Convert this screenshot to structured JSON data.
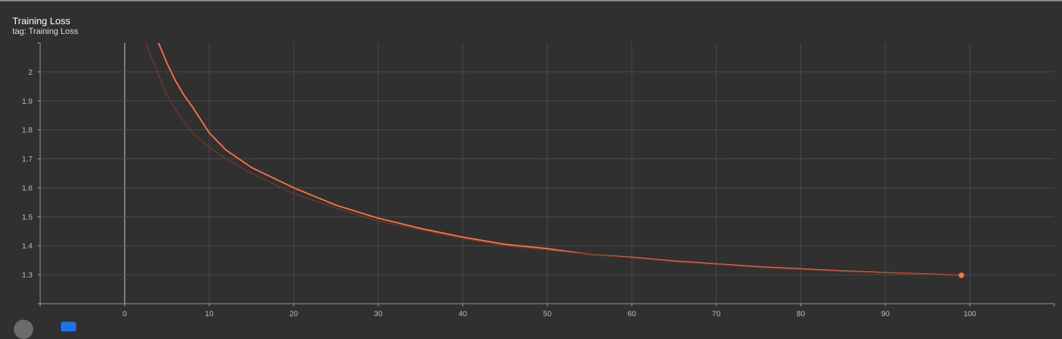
{
  "card": {
    "title": "Training Loss",
    "subtitle": "tag: Training Loss"
  },
  "colors": {
    "background": "#303030",
    "grid": "#4d4d4d",
    "axis": "#9e9e9e",
    "smoothed_line": "#ff7043",
    "raw_line": "#6b3a2a"
  },
  "chart_data": {
    "type": "line",
    "title": "Training Loss",
    "xlabel": "",
    "ylabel": "",
    "xlim": [
      -10,
      110
    ],
    "ylim": [
      1.2,
      2.1
    ],
    "xticks": [
      "0",
      "10",
      "20",
      "30",
      "40",
      "50",
      "60",
      "70",
      "80",
      "90",
      "100"
    ],
    "yticks": [
      "1.3",
      "1.4",
      "1.5",
      "1.6",
      "1.7",
      "1.8",
      "1.9",
      "2"
    ],
    "grid": true,
    "series": [
      {
        "role": "smoothed",
        "x": [
          4,
          5,
          6,
          7,
          8,
          10,
          12,
          15,
          20,
          25,
          30,
          35,
          40,
          45,
          50,
          55,
          60,
          65,
          70,
          75,
          80,
          85,
          90,
          95,
          99
        ],
        "y": [
          2.1,
          2.03,
          1.97,
          1.92,
          1.88,
          1.79,
          1.73,
          1.67,
          1.6,
          1.54,
          1.495,
          1.46,
          1.43,
          1.405,
          1.39,
          1.37,
          1.36,
          1.347,
          1.337,
          1.327,
          1.32,
          1.313,
          1.307,
          1.302,
          1.298
        ]
      },
      {
        "role": "raw",
        "x": [
          2.5,
          4,
          5,
          6,
          8,
          10,
          12,
          15,
          20,
          25,
          30,
          35,
          40,
          45,
          50,
          55,
          60,
          65,
          70,
          75,
          80,
          85,
          90,
          95,
          99
        ],
        "y": [
          2.1,
          1.99,
          1.92,
          1.87,
          1.79,
          1.74,
          1.7,
          1.65,
          1.58,
          1.53,
          1.485,
          1.455,
          1.425,
          1.4,
          1.385,
          1.37,
          1.358,
          1.345,
          1.335,
          1.325,
          1.318,
          1.311,
          1.306,
          1.301,
          1.298
        ]
      }
    ],
    "last_point": {
      "x": 99,
      "y": 1.298
    }
  }
}
